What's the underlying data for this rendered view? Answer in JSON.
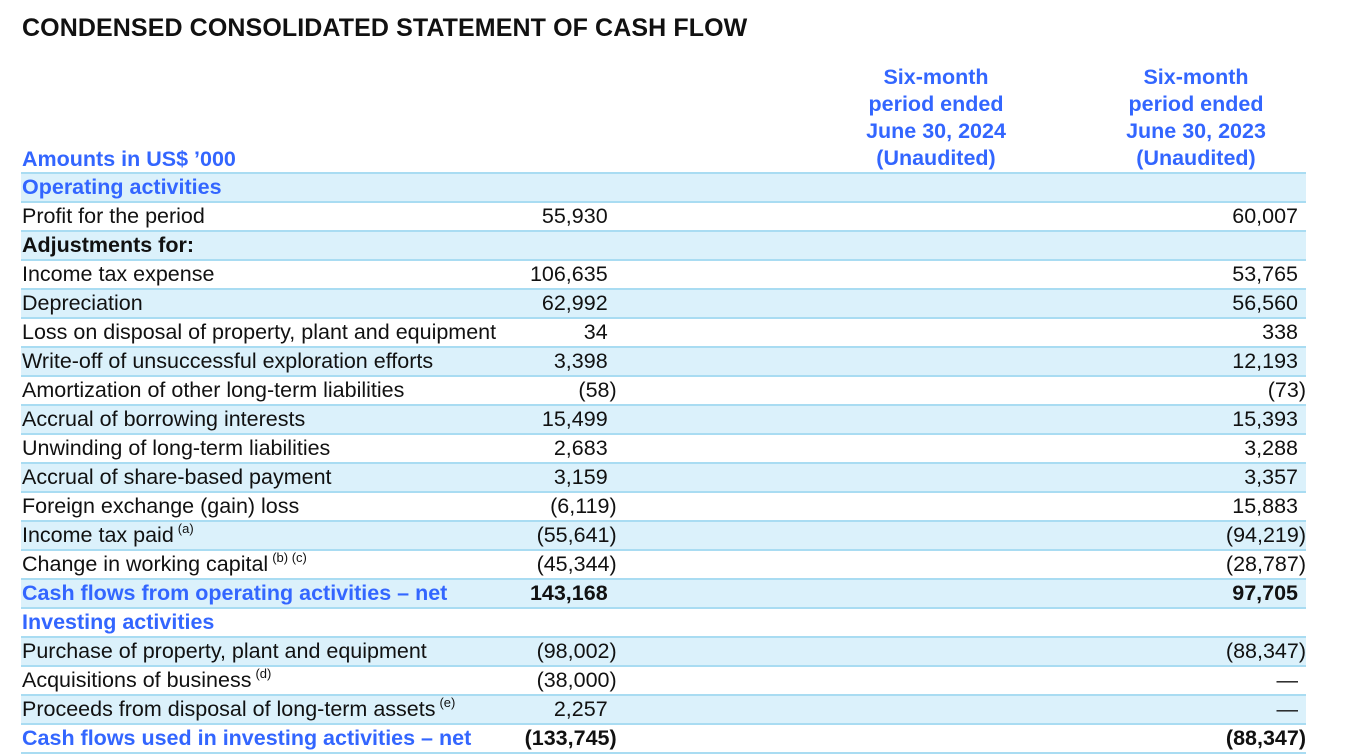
{
  "title": "CONDENSED CONSOLIDATED STATEMENT OF CASH FLOW",
  "amounts_label": "Amounts in US$ ’000",
  "columns": [
    {
      "line1": "Six-month",
      "line2": "period ended",
      "line3": "June 30, 2024",
      "line4": "(Unaudited)"
    },
    {
      "line1": "Six-month",
      "line2": "period ended",
      "line3": "June 30, 2023",
      "line4": "(Unaudited)"
    }
  ],
  "rows": [
    {
      "label": "Operating activities",
      "footnote": "",
      "v2024": "",
      "v2023": ""
    },
    {
      "label": "Profit for the period",
      "footnote": "",
      "v2024": "55,930",
      "v2023": "60,007"
    },
    {
      "label": "Adjustments for:",
      "footnote": "",
      "v2024": "",
      "v2023": ""
    },
    {
      "label": "Income tax expense",
      "footnote": "",
      "v2024": "106,635",
      "v2023": "53,765"
    },
    {
      "label": "Depreciation",
      "footnote": "",
      "v2024": "62,992",
      "v2023": "56,560"
    },
    {
      "label": "Loss on disposal of property, plant and equipment",
      "footnote": "",
      "v2024": "34",
      "v2023": "338"
    },
    {
      "label": "Write-off of unsuccessful exploration efforts",
      "footnote": "",
      "v2024": "3,398",
      "v2023": "12,193"
    },
    {
      "label": "Amortization of other long-term liabilities",
      "footnote": "",
      "v2024": "(58)",
      "v2023": "(73)"
    },
    {
      "label": "Accrual of borrowing interests",
      "footnote": "",
      "v2024": "15,499",
      "v2023": "15,393"
    },
    {
      "label": "Unwinding of long-term liabilities",
      "footnote": "",
      "v2024": "2,683",
      "v2023": "3,288"
    },
    {
      "label": "Accrual of share-based payment",
      "footnote": "",
      "v2024": "3,159",
      "v2023": "3,357"
    },
    {
      "label": "Foreign exchange (gain) loss",
      "footnote": "",
      "v2024": "(6,119)",
      "v2023": "15,883"
    },
    {
      "label": "Income tax paid",
      "footnote": "(a)",
      "v2024": "(55,641)",
      "v2023": "(94,219)"
    },
    {
      "label": "Change in working capital",
      "footnote": "(b) (c)",
      "v2024": "(45,344)",
      "v2023": "(28,787)"
    },
    {
      "label": "Cash flows from operating activities – net",
      "footnote": "",
      "v2024": "143,168",
      "v2023": "97,705"
    },
    {
      "label": "Investing activities",
      "footnote": "",
      "v2024": "",
      "v2023": ""
    },
    {
      "label": "Purchase of property, plant and equipment",
      "footnote": "",
      "v2024": "(98,002)",
      "v2023": "(88,347)"
    },
    {
      "label": "Acquisitions of business",
      "footnote": "(d)",
      "v2024": "(38,000)",
      "v2023": "—"
    },
    {
      "label": "Proceeds from disposal of long-term assets",
      "footnote": "(e)",
      "v2024": "2,257",
      "v2023": "—"
    },
    {
      "label": "Cash flows used in investing activities – net",
      "footnote": "",
      "v2024": "(133,745)",
      "v2023": "(88,347)"
    }
  ]
}
